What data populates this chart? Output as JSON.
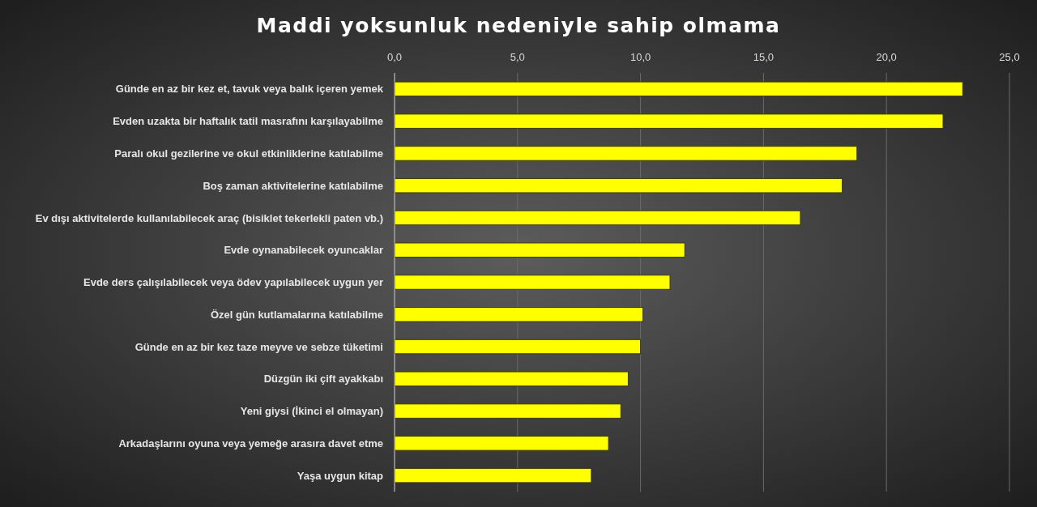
{
  "chart_data": {
    "type": "bar",
    "orientation": "horizontal",
    "title": "Maddi yoksunluk nedeniyle sahip olmama",
    "categories": [
      "Günde en az bir kez et, tavuk veya balık içeren yemek",
      "Evden uzakta bir haftalık tatil masrafını karşılayabilme",
      "Paralı okul gezilerine ve okul etkinliklerine katılabilme",
      "Boş zaman aktivitelerine katılabilme",
      "Ev dışı aktivitelerde kullanılabilecek araç (bisiklet tekerlekli paten vb.)",
      "Evde oynanabilecek oyuncaklar",
      "Evde ders çalışılabilecek veya ödev yapılabilecek uygun yer",
      "Özel gün kutlamalarına katılabilme",
      "Günde en az bir kez taze meyve ve sebze tüketimi",
      "Düzgün iki çift ayakkabı",
      "Yeni giysi (İkinci el olmayan)",
      "Arkadaşlarını oyuna veya yemeğe arasıra davet etme",
      "Yaşa uygun kitap"
    ],
    "values": [
      23.1,
      22.3,
      18.8,
      18.2,
      16.5,
      11.8,
      11.2,
      10.1,
      10.0,
      9.5,
      9.2,
      8.7,
      8.0
    ],
    "color": "#ffff00",
    "xlim": [
      0,
      25
    ],
    "xticks": [
      {
        "value": 0,
        "label": "0,0"
      },
      {
        "value": 5,
        "label": "5,0"
      },
      {
        "value": 10,
        "label": "10,0"
      },
      {
        "value": 15,
        "label": "15,0"
      },
      {
        "value": 20,
        "label": "20,0"
      },
      {
        "value": 25,
        "label": "25,0"
      }
    ],
    "grid": "x"
  }
}
